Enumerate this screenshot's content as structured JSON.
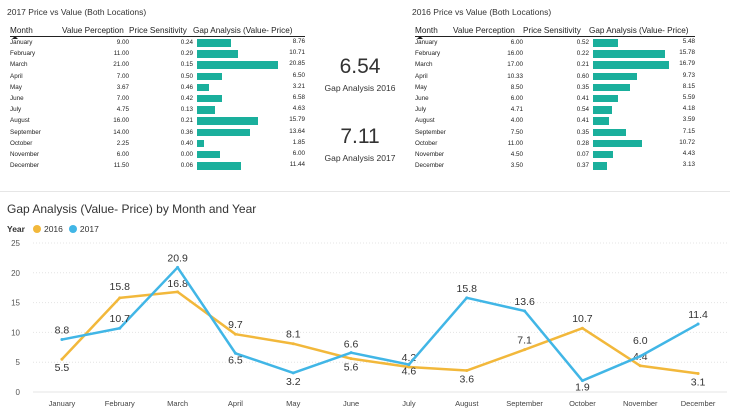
{
  "table2017": {
    "title": "2017 Price vs Value (Both Locations)",
    "headers": [
      "Month",
      "Value Perception",
      "Price Sensitivity",
      "Gap Analysis (Value- Price)"
    ],
    "rows": [
      {
        "month": "January",
        "value": "9.00",
        "price": "0.24",
        "gap": "8.76"
      },
      {
        "month": "February",
        "value": "11.00",
        "price": "0.29",
        "gap": "10.71"
      },
      {
        "month": "March",
        "value": "21.00",
        "price": "0.15",
        "gap": "20.85"
      },
      {
        "month": "April",
        "value": "7.00",
        "price": "0.50",
        "gap": "6.50"
      },
      {
        "month": "May",
        "value": "3.67",
        "price": "0.46",
        "gap": "3.21"
      },
      {
        "month": "June",
        "value": "7.00",
        "price": "0.42",
        "gap": "6.58"
      },
      {
        "month": "July",
        "value": "4.75",
        "price": "0.13",
        "gap": "4.63"
      },
      {
        "month": "August",
        "value": "16.00",
        "price": "0.21",
        "gap": "15.79"
      },
      {
        "month": "September",
        "value": "14.00",
        "price": "0.36",
        "gap": "13.64"
      },
      {
        "month": "October",
        "value": "2.25",
        "price": "0.40",
        "gap": "1.85"
      },
      {
        "month": "November",
        "value": "6.00",
        "price": "0.00",
        "gap": "6.00"
      },
      {
        "month": "December",
        "value": "11.50",
        "price": "0.06",
        "gap": "11.44"
      }
    ]
  },
  "table2016": {
    "title": "2016 Price vs Value (Both Locations)",
    "headers": [
      "Month",
      "Value Perception",
      "Price Sensitivity",
      "Gap Analysis (Value- Price)"
    ],
    "rows": [
      {
        "month": "January",
        "value": "6.00",
        "price": "0.52",
        "gap": "5.48"
      },
      {
        "month": "February",
        "value": "16.00",
        "price": "0.22",
        "gap": "15.78"
      },
      {
        "month": "March",
        "value": "17.00",
        "price": "0.21",
        "gap": "16.79"
      },
      {
        "month": "April",
        "value": "10.33",
        "price": "0.60",
        "gap": "9.73"
      },
      {
        "month": "May",
        "value": "8.50",
        "price": "0.35",
        "gap": "8.15"
      },
      {
        "month": "June",
        "value": "6.00",
        "price": "0.41",
        "gap": "5.59"
      },
      {
        "month": "July",
        "value": "4.71",
        "price": "0.54",
        "gap": "4.18"
      },
      {
        "month": "August",
        "value": "4.00",
        "price": "0.41",
        "gap": "3.59"
      },
      {
        "month": "September",
        "value": "7.50",
        "price": "0.35",
        "gap": "7.15"
      },
      {
        "month": "October",
        "value": "11.00",
        "price": "0.28",
        "gap": "10.72"
      },
      {
        "month": "November",
        "value": "4.50",
        "price": "0.07",
        "gap": "4.43"
      },
      {
        "month": "December",
        "value": "3.50",
        "price": "0.37",
        "gap": "3.13"
      }
    ]
  },
  "kpi2016": {
    "value": "6.54",
    "label": "Gap Analysis 2016"
  },
  "kpi2017": {
    "value": "7.11",
    "label": "Gap Analysis 2017"
  },
  "colors": {
    "bar": "#1aaf9c",
    "series2016": "#f2b83b",
    "series2017": "#41b6e6"
  },
  "chart": {
    "title": "Gap Analysis (Value- Price) by Month and Year",
    "legend_title": "Year"
  },
  "chart_data": {
    "type": "line",
    "title": "Gap Analysis (Value- Price) by Month and Year",
    "categories": [
      "January",
      "February",
      "March",
      "April",
      "May",
      "June",
      "July",
      "August",
      "September",
      "October",
      "November",
      "December"
    ],
    "series": [
      {
        "name": "2016",
        "values": [
          5.5,
          15.8,
          16.8,
          9.7,
          8.1,
          5.6,
          4.2,
          3.6,
          7.1,
          10.7,
          4.4,
          3.1
        ]
      },
      {
        "name": "2017",
        "values": [
          8.8,
          10.7,
          20.9,
          6.5,
          3.2,
          6.6,
          4.6,
          15.8,
          13.6,
          1.9,
          6.0,
          11.4
        ]
      }
    ],
    "ylim": [
      0,
      25
    ],
    "yticks": [
      0,
      5,
      10,
      15,
      20,
      25
    ],
    "grid": true,
    "legend": "top-left"
  }
}
